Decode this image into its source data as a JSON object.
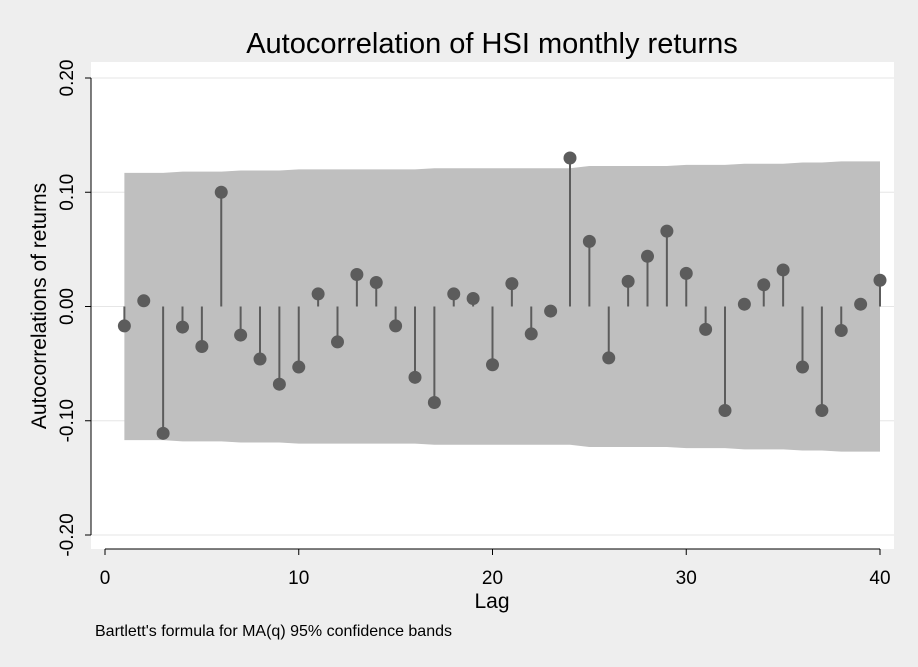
{
  "chart_data": {
    "type": "scatter",
    "title": "Autocorrelation of HSI monthly returns",
    "xlabel": "Lag",
    "ylabel": "Autocorrelations of returns",
    "note": "Bartlett's formula for MA(q) 95% confidence bands",
    "xlim": [
      0,
      40
    ],
    "ylim": [
      -0.2,
      0.2
    ],
    "x_ticks": [
      0,
      10,
      20,
      30,
      40
    ],
    "y_ticks": [
      -0.2,
      -0.1,
      0.0,
      0.1,
      0.2
    ],
    "y_tick_labels": [
      "-0.20",
      "-0.10",
      "0.00",
      "0.10",
      "0.20"
    ],
    "grid": "horizontal",
    "colors": {
      "marker": "#5c5c5c",
      "band": "#bfbfbf",
      "plot_bg": "#ffffff",
      "page_bg": "#eeeeee",
      "grid": "#e6e6e6"
    },
    "series": [
      {
        "x": [
          1,
          2,
          3,
          4,
          5,
          6,
          7,
          8,
          9,
          10,
          11,
          12,
          13,
          14,
          15,
          16,
          17,
          18,
          19,
          20,
          21,
          22,
          23,
          24,
          25,
          26,
          27,
          28,
          29,
          30,
          31,
          32,
          33,
          34,
          35,
          36,
          37,
          38,
          39,
          40
        ],
        "values": [
          -0.017,
          0.005,
          -0.111,
          -0.018,
          -0.035,
          0.1,
          -0.025,
          -0.046,
          -0.068,
          -0.053,
          0.011,
          -0.031,
          0.028,
          0.021,
          -0.017,
          -0.062,
          -0.084,
          0.011,
          0.007,
          -0.051,
          0.02,
          -0.024,
          -0.004,
          0.13,
          0.057,
          -0.045,
          0.022,
          0.044,
          0.066,
          0.029,
          -0.02,
          -0.091,
          0.002,
          0.019,
          0.032,
          -0.053,
          -0.091,
          -0.021,
          0.002,
          0.023
        ]
      }
    ],
    "confidence_band": {
      "lag": [
        1,
        2,
        3,
        4,
        5,
        6,
        7,
        8,
        9,
        10,
        11,
        12,
        13,
        14,
        15,
        16,
        17,
        18,
        19,
        20,
        21,
        22,
        23,
        24,
        25,
        26,
        27,
        28,
        29,
        30,
        31,
        32,
        33,
        34,
        35,
        36,
        37,
        38,
        39,
        40
      ],
      "upper": [
        0.117,
        0.117,
        0.117,
        0.118,
        0.118,
        0.118,
        0.119,
        0.119,
        0.119,
        0.12,
        0.12,
        0.12,
        0.12,
        0.12,
        0.12,
        0.12,
        0.121,
        0.121,
        0.121,
        0.121,
        0.121,
        0.121,
        0.121,
        0.121,
        0.123,
        0.123,
        0.123,
        0.123,
        0.123,
        0.124,
        0.124,
        0.124,
        0.125,
        0.125,
        0.125,
        0.126,
        0.126,
        0.127,
        0.127,
        0.127
      ]
    }
  }
}
